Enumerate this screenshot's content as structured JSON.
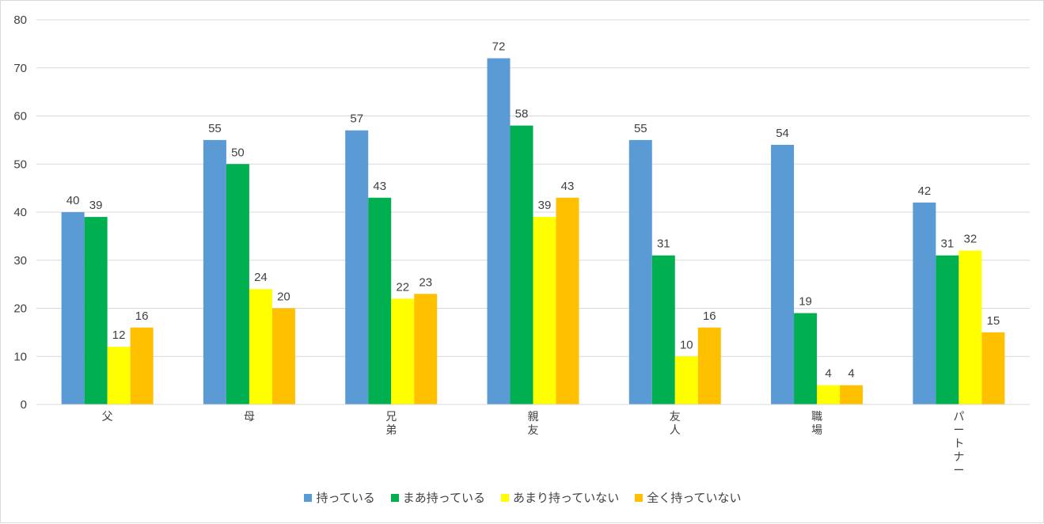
{
  "chart_data": {
    "type": "bar",
    "categories": [
      "父",
      "母",
      "兄弟",
      "親友",
      "友人",
      "職場",
      "パートナー"
    ],
    "series": [
      {
        "name": "持っている",
        "color": "#5b9bd5",
        "values": [
          40,
          55,
          57,
          72,
          55,
          54,
          42
        ]
      },
      {
        "name": "まあ持っている",
        "color": "#00b050",
        "values": [
          39,
          50,
          43,
          58,
          31,
          19,
          31
        ]
      },
      {
        "name": "あまり持っていない",
        "color": "#ffff00",
        "values": [
          12,
          24,
          22,
          39,
          10,
          4,
          32
        ]
      },
      {
        "name": "全く持っていない",
        "color": "#ffc000",
        "values": [
          16,
          20,
          23,
          43,
          16,
          4,
          15
        ]
      }
    ],
    "title": "",
    "xlabel": "",
    "ylabel": "",
    "ylim": [
      0,
      80
    ],
    "yticks": [
      0,
      10,
      20,
      30,
      40,
      50,
      60,
      70,
      80
    ],
    "grid": true,
    "legend_position": "bottom",
    "data_labels": true
  }
}
